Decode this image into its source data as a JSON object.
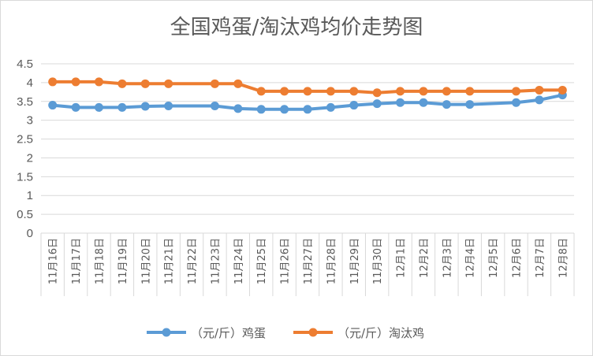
{
  "chart_data": {
    "type": "line",
    "title": "全国鸡蛋/淘汰鸡均价走势图",
    "xlabel": "",
    "ylabel": "",
    "ylim": [
      0,
      4.5
    ],
    "yticks": [
      "0",
      "0.5",
      "1",
      "1.5",
      "2",
      "2.5",
      "3",
      "3.5",
      "4",
      "4.5"
    ],
    "grid": true,
    "legend_position": "bottom",
    "categories": [
      "11月16日",
      "11月17日",
      "11月18日",
      "11月19日",
      "11月20日",
      "11月21日",
      "11月22日",
      "11月23日",
      "11月24日",
      "11月25日",
      "11月26日",
      "11月27日",
      "11月28日",
      "11月29日",
      "11月30日",
      "12月1日",
      "12月2日",
      "12月3日",
      "12月4日",
      "12月5日",
      "12月6日",
      "12月7日",
      "12月8日"
    ],
    "series": [
      {
        "name": "（元/斤）鸡蛋",
        "color": "#5b9bd5",
        "values": [
          3.4,
          3.34,
          3.34,
          3.34,
          3.37,
          3.38,
          null,
          3.38,
          3.31,
          3.29,
          3.29,
          3.29,
          3.34,
          3.4,
          3.44,
          3.47,
          3.47,
          3.42,
          3.42,
          null,
          3.47,
          3.54,
          3.67
        ]
      },
      {
        "name": "（元/斤）淘汰鸡",
        "color": "#ed7d31",
        "values": [
          4.02,
          4.02,
          4.02,
          3.97,
          3.97,
          3.97,
          null,
          3.97,
          3.97,
          3.77,
          3.77,
          3.77,
          3.77,
          3.77,
          3.73,
          3.77,
          3.77,
          3.77,
          3.77,
          null,
          3.77,
          3.8,
          3.8
        ]
      }
    ]
  }
}
